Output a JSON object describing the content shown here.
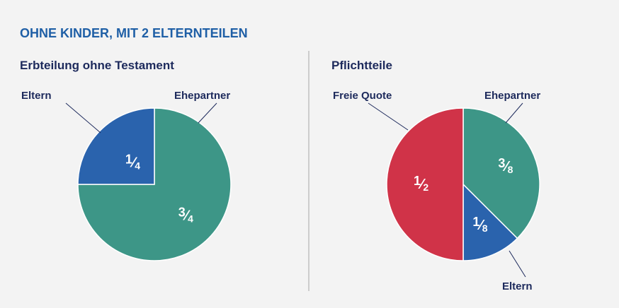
{
  "section_title": "OHNE KINDER, MIT 2 ELTERNTEILEN",
  "colors": {
    "blue": "#2a63ad",
    "teal": "#3d9687",
    "red": "#d03348",
    "title_blue": "#1f5fa6",
    "text_dark": "#1d2a5c"
  },
  "chart_data": [
    {
      "type": "pie",
      "title": "Erbteilung ohne Testament",
      "slices": [
        {
          "label": "Ehepartner",
          "value": 0.75,
          "fraction": {
            "num": "3",
            "den": "4"
          },
          "color": "#3d9687"
        },
        {
          "label": "Eltern",
          "value": 0.25,
          "fraction": {
            "num": "1",
            "den": "4"
          },
          "color": "#2a63ad"
        }
      ]
    },
    {
      "type": "pie",
      "title": "Pflichtteile",
      "slices": [
        {
          "label": "Ehepartner",
          "value": 0.375,
          "fraction": {
            "num": "3",
            "den": "8"
          },
          "color": "#3d9687"
        },
        {
          "label": "Eltern",
          "value": 0.125,
          "fraction": {
            "num": "1",
            "den": "8"
          },
          "color": "#2a63ad"
        },
        {
          "label": "Freie Quote",
          "value": 0.5,
          "fraction": {
            "num": "1",
            "den": "2"
          },
          "color": "#d03348"
        }
      ]
    }
  ]
}
